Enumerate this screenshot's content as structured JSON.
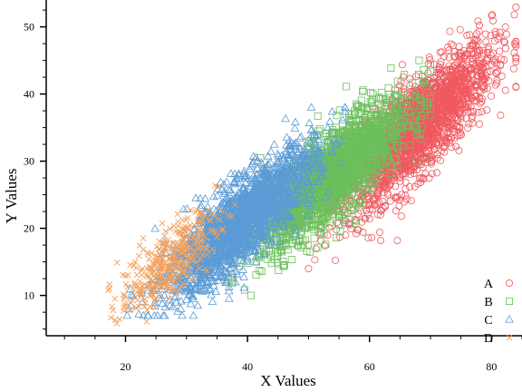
{
  "chart_data": {
    "type": "scatter",
    "title": "",
    "xlabel": "X Values",
    "ylabel": "Y Values",
    "xlim": [
      7,
      85
    ],
    "ylim": [
      4,
      54
    ],
    "xticks": [
      20,
      40,
      60,
      80
    ],
    "yticks": [
      10,
      20,
      30,
      40,
      50
    ],
    "grid": false,
    "legend_position": "bottom-right",
    "series": [
      {
        "name": "A",
        "marker": "circle",
        "color": "#f0585f",
        "center": [
          68,
          35
        ],
        "x_spread": 6,
        "correlation": 0.75,
        "y_slope": 0.8,
        "y_noise": 3.5,
        "x_range": [
          50,
          84
        ],
        "y_range": [
          14,
          54
        ],
        "approx_point_count": 2000
      },
      {
        "name": "B",
        "marker": "square",
        "color": "#6cbf5c",
        "center": [
          54,
          28
        ],
        "x_spread": 6,
        "correlation": 0.7,
        "y_slope": 0.75,
        "y_noise": 3.2,
        "x_range": [
          33,
          70
        ],
        "y_range": [
          10,
          45
        ],
        "approx_point_count": 2000
      },
      {
        "name": "C",
        "marker": "triangle",
        "color": "#5b9bd5",
        "center": [
          39,
          21
        ],
        "x_spread": 6,
        "correlation": 0.75,
        "y_slope": 0.75,
        "y_noise": 3.0,
        "x_range": [
          18,
          56
        ],
        "y_range": [
          7,
          38
        ],
        "approx_point_count": 2000
      },
      {
        "name": "D",
        "marker": "x",
        "color": "#f5a05a",
        "center": [
          27,
          15
        ],
        "x_spread": 4,
        "correlation": 0.7,
        "y_slope": 0.7,
        "y_noise": 2.5,
        "x_range": [
          8,
          42
        ],
        "y_range": [
          4,
          28
        ],
        "approx_point_count": 350
      }
    ]
  }
}
